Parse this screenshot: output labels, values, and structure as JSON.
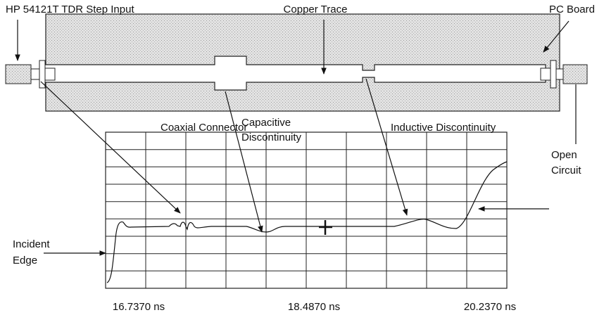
{
  "labels": {
    "step_input": "HP 54121T TDR Step Input",
    "copper_trace": "Copper Trace",
    "pc_board": "PC Board",
    "coaxial_connector": "Coaxial Connector",
    "capacitive_discontinuity": [
      "Capacitive",
      "Discontinuity"
    ],
    "inductive_discontinuity": "Inductive Discontinuity",
    "open_circuit": [
      "Open",
      "Circuit"
    ],
    "incident_edge": [
      "Incident",
      "Edge"
    ]
  },
  "time_labels": [
    "16.7370 ns",
    "18.4870 ns",
    "20.2370 ns"
  ]
}
